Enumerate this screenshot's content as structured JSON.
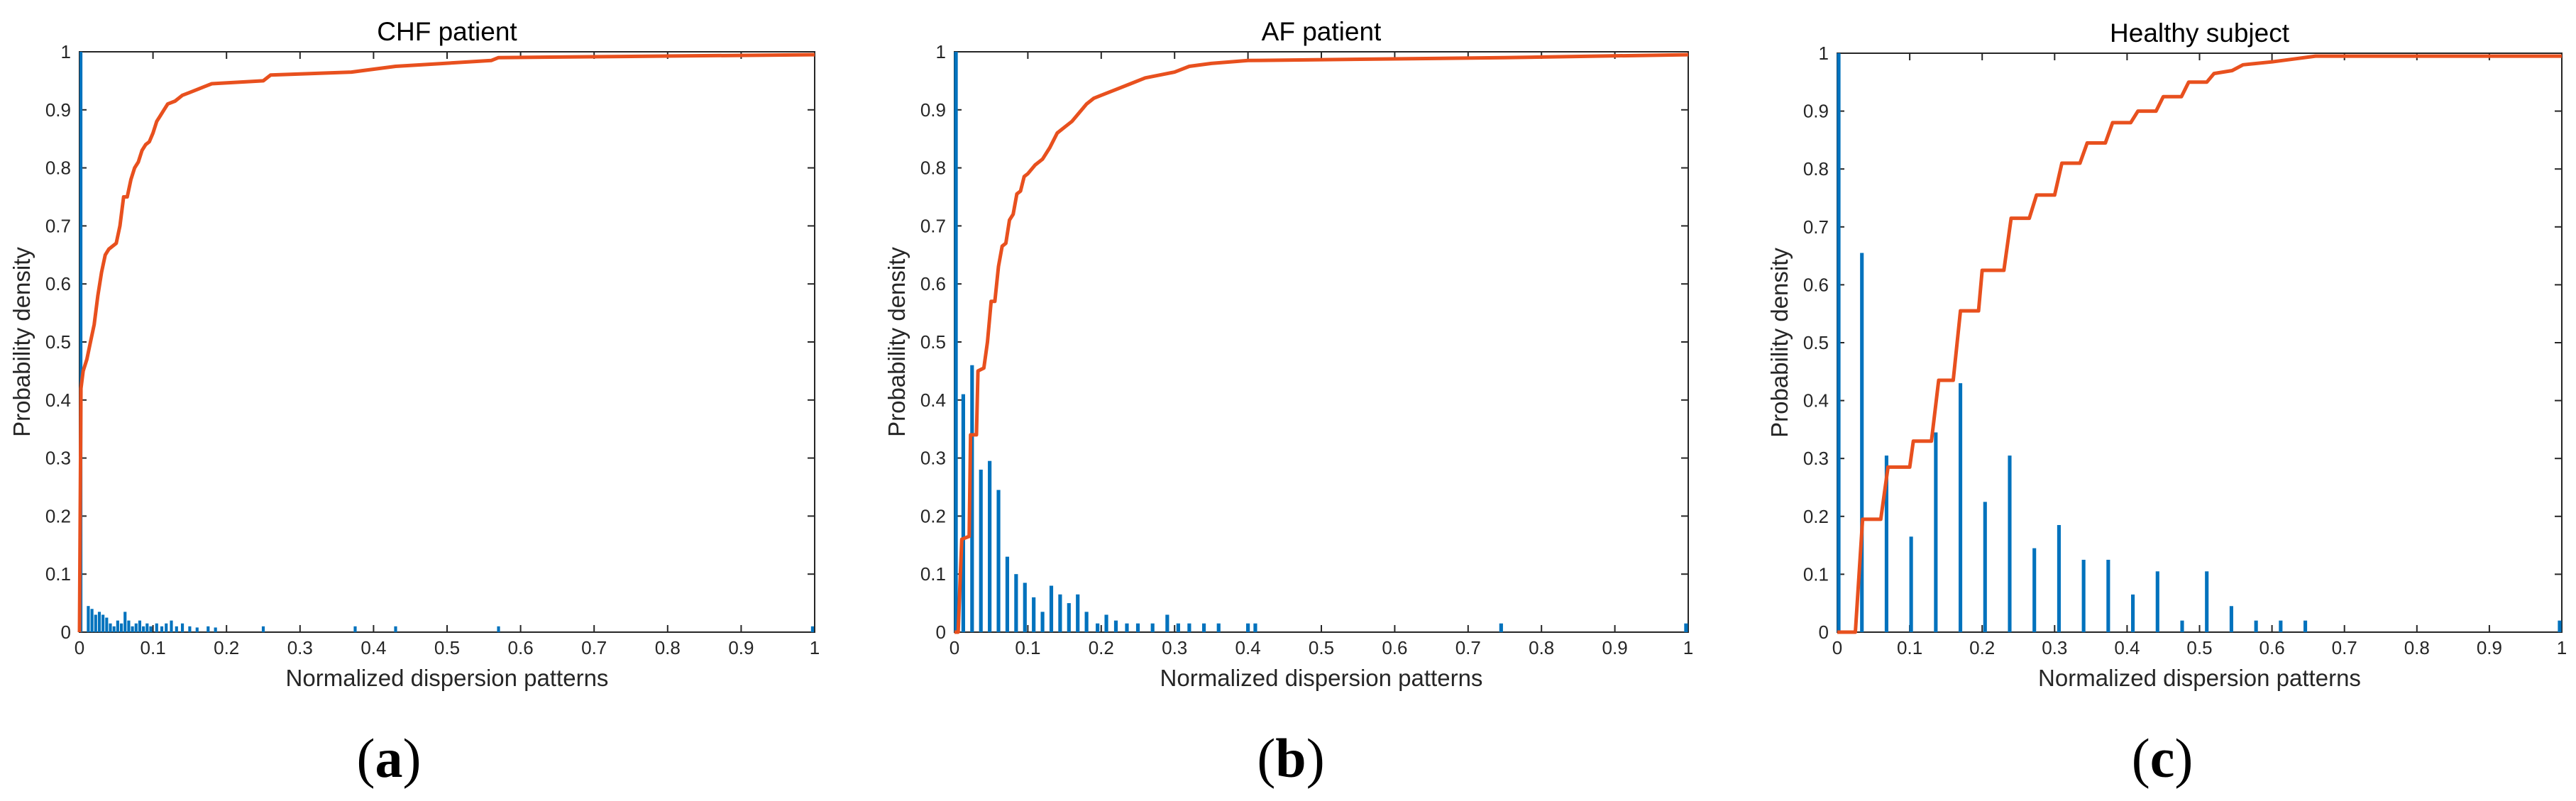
{
  "colors": {
    "histogram": "#0072BD",
    "cdf": "#E8501E",
    "axis": "#262626"
  },
  "chart_data": [
    {
      "type": "bar",
      "panel_label": "a",
      "title": "CHF patient",
      "xlabel": "Normalized dispersion patterns",
      "ylabel": "Probability density",
      "xlim": [
        0,
        1
      ],
      "ylim": [
        0,
        1
      ],
      "xticks": [
        0,
        0.1,
        0.2,
        0.3,
        0.4,
        0.5,
        0.6,
        0.7,
        0.8,
        0.9,
        1
      ],
      "yticks": [
        0,
        0.1,
        0.2,
        0.3,
        0.4,
        0.5,
        0.6,
        0.7,
        0.8,
        0.9,
        1
      ],
      "bar_width": 0.004,
      "bars": [
        {
          "x": 0.002,
          "y": 1.0
        },
        {
          "x": 0.012,
          "y": 0.045
        },
        {
          "x": 0.017,
          "y": 0.04
        },
        {
          "x": 0.022,
          "y": 0.03
        },
        {
          "x": 0.027,
          "y": 0.035
        },
        {
          "x": 0.032,
          "y": 0.03
        },
        {
          "x": 0.037,
          "y": 0.025
        },
        {
          "x": 0.042,
          "y": 0.015
        },
        {
          "x": 0.047,
          "y": 0.01
        },
        {
          "x": 0.052,
          "y": 0.02
        },
        {
          "x": 0.057,
          "y": 0.015
        },
        {
          "x": 0.062,
          "y": 0.035
        },
        {
          "x": 0.067,
          "y": 0.02
        },
        {
          "x": 0.072,
          "y": 0.01
        },
        {
          "x": 0.077,
          "y": 0.015
        },
        {
          "x": 0.082,
          "y": 0.02
        },
        {
          "x": 0.087,
          "y": 0.01
        },
        {
          "x": 0.092,
          "y": 0.015
        },
        {
          "x": 0.097,
          "y": 0.01
        },
        {
          "x": 0.105,
          "y": 0.015
        },
        {
          "x": 0.112,
          "y": 0.01
        },
        {
          "x": 0.118,
          "y": 0.015
        },
        {
          "x": 0.125,
          "y": 0.02
        },
        {
          "x": 0.132,
          "y": 0.01
        },
        {
          "x": 0.14,
          "y": 0.015
        },
        {
          "x": 0.15,
          "y": 0.01
        },
        {
          "x": 0.16,
          "y": 0.008
        },
        {
          "x": 0.175,
          "y": 0.01
        },
        {
          "x": 0.185,
          "y": 0.008
        },
        {
          "x": 0.25,
          "y": 0.01
        },
        {
          "x": 0.375,
          "y": 0.01
        },
        {
          "x": 0.43,
          "y": 0.01
        },
        {
          "x": 0.57,
          "y": 0.01
        },
        {
          "x": 0.997,
          "y": 0.01
        }
      ],
      "cdf": [
        [
          0,
          0
        ],
        [
          0.002,
          0.42
        ],
        [
          0.005,
          0.45
        ],
        [
          0.01,
          0.47
        ],
        [
          0.015,
          0.5
        ],
        [
          0.02,
          0.53
        ],
        [
          0.025,
          0.58
        ],
        [
          0.03,
          0.62
        ],
        [
          0.035,
          0.65
        ],
        [
          0.04,
          0.66
        ],
        [
          0.045,
          0.665
        ],
        [
          0.05,
          0.67
        ],
        [
          0.055,
          0.7
        ],
        [
          0.06,
          0.75
        ],
        [
          0.065,
          0.75
        ],
        [
          0.07,
          0.78
        ],
        [
          0.075,
          0.8
        ],
        [
          0.08,
          0.81
        ],
        [
          0.085,
          0.83
        ],
        [
          0.09,
          0.84
        ],
        [
          0.095,
          0.845
        ],
        [
          0.1,
          0.86
        ],
        [
          0.105,
          0.88
        ],
        [
          0.11,
          0.89
        ],
        [
          0.115,
          0.9
        ],
        [
          0.12,
          0.91
        ],
        [
          0.13,
          0.915
        ],
        [
          0.14,
          0.925
        ],
        [
          0.15,
          0.93
        ],
        [
          0.16,
          0.935
        ],
        [
          0.17,
          0.94
        ],
        [
          0.18,
          0.945
        ],
        [
          0.25,
          0.95
        ],
        [
          0.26,
          0.96
        ],
        [
          0.37,
          0.965
        ],
        [
          0.43,
          0.975
        ],
        [
          0.56,
          0.985
        ],
        [
          0.57,
          0.99
        ],
        [
          1.0,
          0.995
        ]
      ]
    },
    {
      "type": "bar",
      "panel_label": "b",
      "title": "AF patient",
      "xlabel": "Normalized dispersion patterns",
      "ylabel": "Probability density",
      "xlim": [
        0,
        1
      ],
      "ylim": [
        0,
        1
      ],
      "xticks": [
        0,
        0.1,
        0.2,
        0.3,
        0.4,
        0.5,
        0.6,
        0.7,
        0.8,
        0.9,
        1
      ],
      "yticks": [
        0,
        0.1,
        0.2,
        0.3,
        0.4,
        0.5,
        0.6,
        0.7,
        0.8,
        0.9,
        1
      ],
      "bar_width": 0.005,
      "bars": [
        {
          "x": 0.002,
          "y": 1.0
        },
        {
          "x": 0.012,
          "y": 0.41
        },
        {
          "x": 0.024,
          "y": 0.46
        },
        {
          "x": 0.036,
          "y": 0.28
        },
        {
          "x": 0.048,
          "y": 0.295
        },
        {
          "x": 0.06,
          "y": 0.245
        },
        {
          "x": 0.072,
          "y": 0.13
        },
        {
          "x": 0.084,
          "y": 0.1
        },
        {
          "x": 0.096,
          "y": 0.085
        },
        {
          "x": 0.108,
          "y": 0.06
        },
        {
          "x": 0.12,
          "y": 0.035
        },
        {
          "x": 0.132,
          "y": 0.08
        },
        {
          "x": 0.144,
          "y": 0.065
        },
        {
          "x": 0.156,
          "y": 0.05
        },
        {
          "x": 0.168,
          "y": 0.065
        },
        {
          "x": 0.18,
          "y": 0.035
        },
        {
          "x": 0.195,
          "y": 0.015
        },
        {
          "x": 0.207,
          "y": 0.03
        },
        {
          "x": 0.22,
          "y": 0.02
        },
        {
          "x": 0.235,
          "y": 0.015
        },
        {
          "x": 0.25,
          "y": 0.015
        },
        {
          "x": 0.27,
          "y": 0.015
        },
        {
          "x": 0.29,
          "y": 0.03
        },
        {
          "x": 0.305,
          "y": 0.015
        },
        {
          "x": 0.32,
          "y": 0.015
        },
        {
          "x": 0.34,
          "y": 0.015
        },
        {
          "x": 0.36,
          "y": 0.015
        },
        {
          "x": 0.4,
          "y": 0.015
        },
        {
          "x": 0.41,
          "y": 0.015
        },
        {
          "x": 0.745,
          "y": 0.015
        },
        {
          "x": 0.997,
          "y": 0.015
        }
      ],
      "cdf": [
        [
          0,
          0
        ],
        [
          0.005,
          0.0
        ],
        [
          0.008,
          0.1
        ],
        [
          0.01,
          0.16
        ],
        [
          0.02,
          0.165
        ],
        [
          0.022,
          0.34
        ],
        [
          0.03,
          0.34
        ],
        [
          0.032,
          0.45
        ],
        [
          0.04,
          0.455
        ],
        [
          0.045,
          0.5
        ],
        [
          0.05,
          0.57
        ],
        [
          0.055,
          0.57
        ],
        [
          0.06,
          0.63
        ],
        [
          0.065,
          0.665
        ],
        [
          0.07,
          0.67
        ],
        [
          0.075,
          0.71
        ],
        [
          0.08,
          0.72
        ],
        [
          0.085,
          0.755
        ],
        [
          0.09,
          0.76
        ],
        [
          0.095,
          0.785
        ],
        [
          0.1,
          0.79
        ],
        [
          0.11,
          0.805
        ],
        [
          0.12,
          0.815
        ],
        [
          0.13,
          0.835
        ],
        [
          0.14,
          0.86
        ],
        [
          0.15,
          0.87
        ],
        [
          0.16,
          0.88
        ],
        [
          0.17,
          0.895
        ],
        [
          0.18,
          0.91
        ],
        [
          0.19,
          0.92
        ],
        [
          0.2,
          0.925
        ],
        [
          0.22,
          0.935
        ],
        [
          0.24,
          0.945
        ],
        [
          0.26,
          0.955
        ],
        [
          0.28,
          0.96
        ],
        [
          0.3,
          0.965
        ],
        [
          0.32,
          0.975
        ],
        [
          0.35,
          0.98
        ],
        [
          0.4,
          0.985
        ],
        [
          0.75,
          0.99
        ],
        [
          1.0,
          0.995
        ]
      ]
    },
    {
      "type": "bar",
      "panel_label": "c",
      "title": "Healthy subject",
      "xlabel": "Normalized dispersion patterns",
      "ylabel": "Probability density",
      "xlim": [
        0,
        1
      ],
      "ylim": [
        0,
        1
      ],
      "xticks": [
        0,
        0.1,
        0.2,
        0.3,
        0.4,
        0.5,
        0.6,
        0.7,
        0.8,
        0.9,
        1
      ],
      "yticks": [
        0,
        0.1,
        0.2,
        0.3,
        0.4,
        0.5,
        0.6,
        0.7,
        0.8,
        0.9,
        1
      ],
      "bar_width": 0.005,
      "bars": [
        {
          "x": 0.002,
          "y": 1.0
        },
        {
          "x": 0.034,
          "y": 0.655
        },
        {
          "x": 0.068,
          "y": 0.305
        },
        {
          "x": 0.102,
          "y": 0.165
        },
        {
          "x": 0.136,
          "y": 0.345
        },
        {
          "x": 0.17,
          "y": 0.43
        },
        {
          "x": 0.204,
          "y": 0.225
        },
        {
          "x": 0.238,
          "y": 0.305
        },
        {
          "x": 0.272,
          "y": 0.145
        },
        {
          "x": 0.306,
          "y": 0.185
        },
        {
          "x": 0.34,
          "y": 0.125
        },
        {
          "x": 0.374,
          "y": 0.125
        },
        {
          "x": 0.408,
          "y": 0.065
        },
        {
          "x": 0.442,
          "y": 0.105
        },
        {
          "x": 0.476,
          "y": 0.02
        },
        {
          "x": 0.51,
          "y": 0.105
        },
        {
          "x": 0.544,
          "y": 0.045
        },
        {
          "x": 0.578,
          "y": 0.02
        },
        {
          "x": 0.612,
          "y": 0.02
        },
        {
          "x": 0.646,
          "y": 0.02
        },
        {
          "x": 0.997,
          "y": 0.02
        }
      ],
      "cdf": [
        [
          0,
          0
        ],
        [
          0.025,
          0.0
        ],
        [
          0.035,
          0.195
        ],
        [
          0.06,
          0.195
        ],
        [
          0.07,
          0.285
        ],
        [
          0.1,
          0.285
        ],
        [
          0.105,
          0.33
        ],
        [
          0.13,
          0.33
        ],
        [
          0.14,
          0.435
        ],
        [
          0.16,
          0.435
        ],
        [
          0.17,
          0.555
        ],
        [
          0.195,
          0.555
        ],
        [
          0.2,
          0.625
        ],
        [
          0.23,
          0.625
        ],
        [
          0.24,
          0.715
        ],
        [
          0.265,
          0.715
        ],
        [
          0.275,
          0.755
        ],
        [
          0.3,
          0.755
        ],
        [
          0.31,
          0.81
        ],
        [
          0.335,
          0.81
        ],
        [
          0.345,
          0.845
        ],
        [
          0.37,
          0.845
        ],
        [
          0.38,
          0.88
        ],
        [
          0.405,
          0.88
        ],
        [
          0.415,
          0.9
        ],
        [
          0.44,
          0.9
        ],
        [
          0.45,
          0.925
        ],
        [
          0.475,
          0.925
        ],
        [
          0.485,
          0.95
        ],
        [
          0.51,
          0.95
        ],
        [
          0.52,
          0.965
        ],
        [
          0.545,
          0.97
        ],
        [
          0.56,
          0.98
        ],
        [
          0.6,
          0.985
        ],
        [
          0.63,
          0.99
        ],
        [
          0.66,
          0.995
        ],
        [
          1.0,
          0.995
        ]
      ]
    }
  ]
}
